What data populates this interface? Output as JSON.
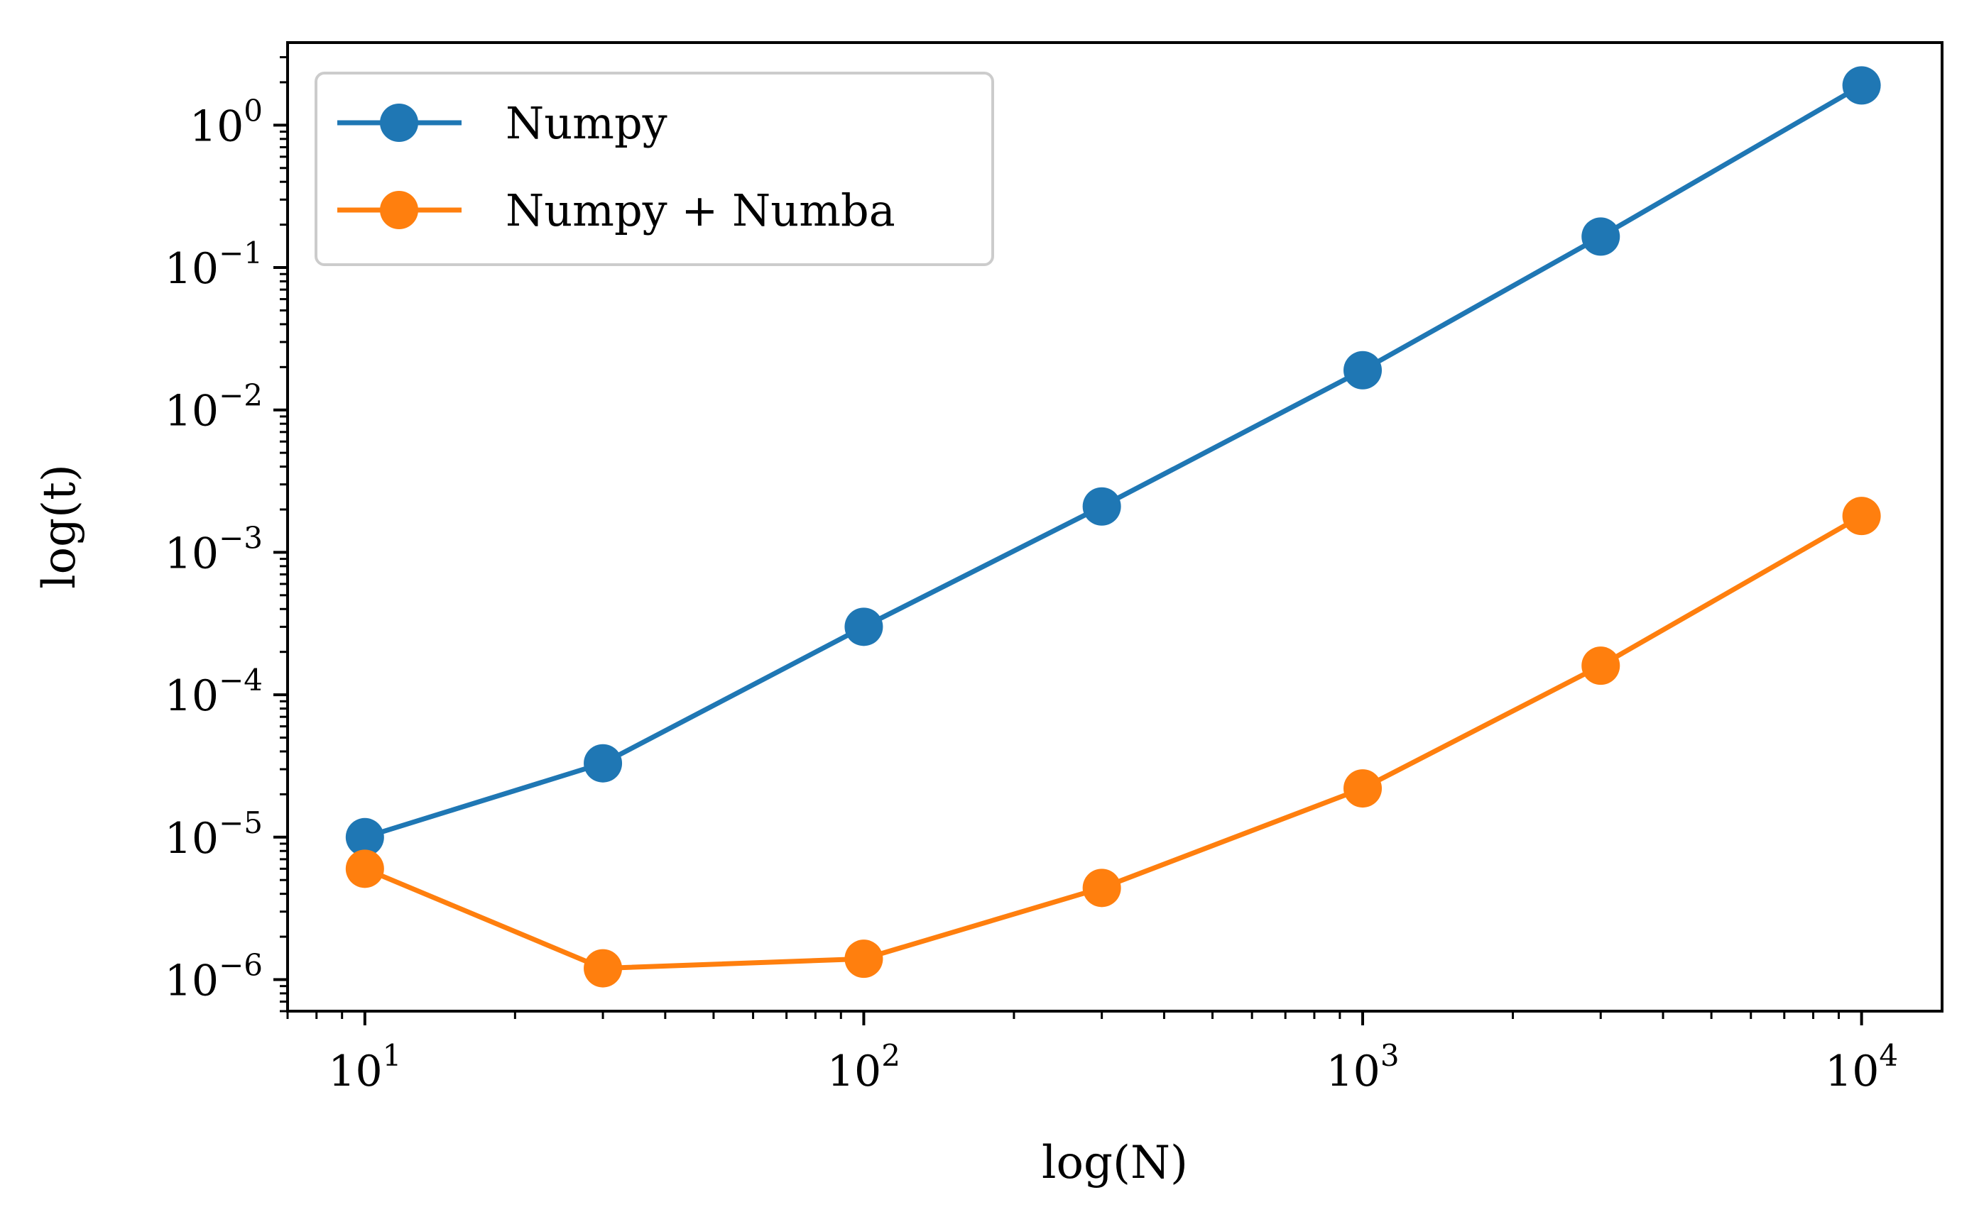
{
  "chart_data": {
    "type": "line",
    "title": "",
    "xlabel": "log(N)",
    "ylabel": "log(t)",
    "xscale": "log",
    "yscale": "log",
    "xlim": [
      7,
      14500
    ],
    "ylim": [
      6e-07,
      3.8
    ],
    "grid": false,
    "legend_position": "top-left",
    "x": [
      10,
      30,
      100,
      300,
      1000,
      3000,
      10000
    ],
    "x_ticks": [
      {
        "value": 10,
        "base": "10",
        "exp": "1"
      },
      {
        "value": 100,
        "base": "10",
        "exp": "2"
      },
      {
        "value": 1000,
        "base": "10",
        "exp": "3"
      },
      {
        "value": 10000,
        "base": "10",
        "exp": "4"
      }
    ],
    "y_ticks": [
      {
        "value": 1e-06,
        "base": "10",
        "exp": "−6"
      },
      {
        "value": 1e-05,
        "base": "10",
        "exp": "−5"
      },
      {
        "value": 0.0001,
        "base": "10",
        "exp": "−4"
      },
      {
        "value": 0.001,
        "base": "10",
        "exp": "−3"
      },
      {
        "value": 0.01,
        "base": "10",
        "exp": "−2"
      },
      {
        "value": 0.1,
        "base": "10",
        "exp": "−1"
      },
      {
        "value": 1,
        "base": "10",
        "exp": "0"
      }
    ],
    "series": [
      {
        "name": "Numpy",
        "color": "#1f77b4",
        "values": [
          1e-05,
          3.3e-05,
          0.0003,
          0.0021,
          0.019,
          0.165,
          1.9
        ]
      },
      {
        "name": "Numpy + Numba",
        "color": "#ff7f0e",
        "values": [
          6e-06,
          1.2e-06,
          1.4e-06,
          4.4e-06,
          2.2e-05,
          0.00016,
          0.0018
        ]
      }
    ]
  }
}
